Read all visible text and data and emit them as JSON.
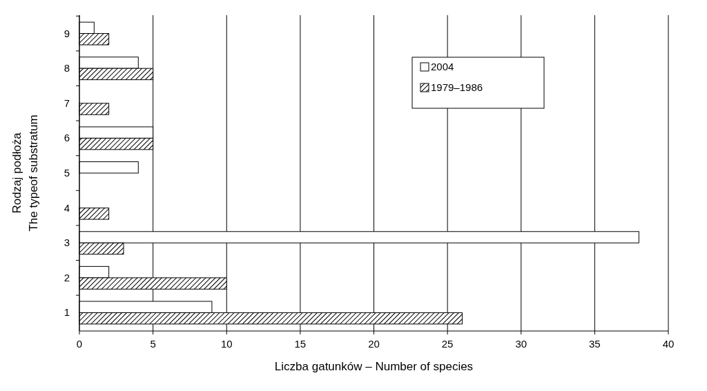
{
  "chart_data": {
    "type": "bar",
    "orientation": "horizontal",
    "xlabel": "Liczba gatunków – Number of species",
    "ylabel": "Rodzaj podłoża\nThe typeof substratum",
    "categories": [
      "9",
      "8",
      "7",
      "6",
      "5",
      "4",
      "3",
      "2",
      "1"
    ],
    "series": [
      {
        "name": "2004",
        "color": "#ffffff",
        "values": [
          1,
          4,
          null,
          5,
          4,
          null,
          38,
          2,
          9
        ]
      },
      {
        "name": "1979–1986",
        "color": "#000000",
        "values": [
          2,
          5,
          2,
          5,
          null,
          2,
          3,
          10,
          26
        ]
      }
    ],
    "xlim": [
      0,
      40
    ],
    "xticks": [
      0,
      5,
      10,
      15,
      20,
      25,
      30,
      35,
      40
    ],
    "grid": "x",
    "legend": "top right"
  }
}
